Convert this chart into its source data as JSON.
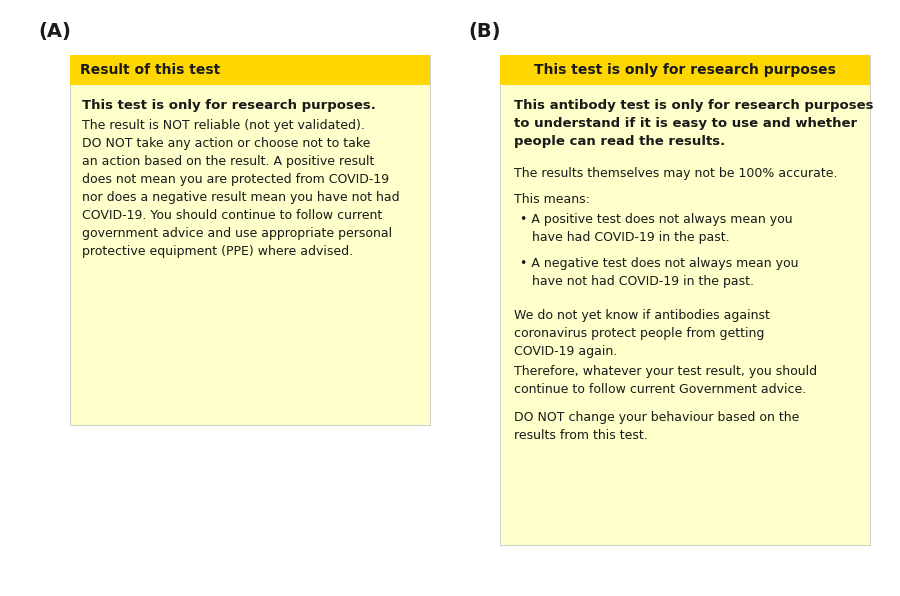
{
  "panel_A_label": "(A)",
  "panel_B_label": "(B)",
  "A_header_text": "Result of this test",
  "A_header_bg": "#FFD700",
  "A_box_bg": "#FFFFCC",
  "A_body_bold": "This test is only for research purposes.",
  "A_body_normal": "The result is NOT reliable (not yet validated).\nDO NOT take any action or choose not to take\nan action based on the result. A positive result\ndoes not mean you are protected from COVID-19\nnor does a negative result mean you have not had\nCOVID-19. You should continue to follow current\ngovernment advice and use appropriate personal\nprotective equipment (PPE) where advised.",
  "B_header_text": "This test is only for research purposes",
  "B_header_bg": "#FFD700",
  "B_box_bg": "#FFFFCC",
  "B_body_bold": "This antibody test is only for research purposes\nto understand if it is easy to use and whether\npeople can read the results.",
  "B_para1": "The results themselves may not be 100% accurate.",
  "B_para2_intro": "This means:",
  "B_bullet1": "• A positive test does not always mean you\n   have had COVID-19 in the past.",
  "B_bullet2": "• A negative test does not always mean you\n   have not had COVID-19 in the past.",
  "B_para3": "We do not yet know if antibodies against\ncoronavirus protect people from getting\nCOVID-19 again.",
  "B_para4": "Therefore, whatever your test result, you should\ncontinue to follow current Government advice.",
  "B_para5": "DO NOT change your behaviour based on the\nresults from this test.",
  "text_color": "#1a1a1a"
}
